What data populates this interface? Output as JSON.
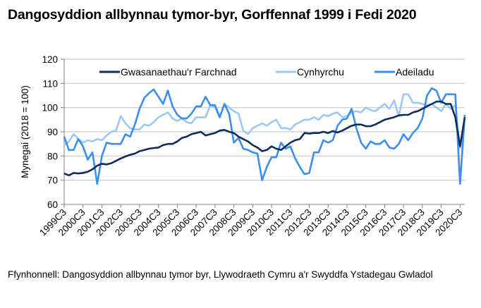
{
  "title": "Dangosyddion allbynnau tymor-byr, Gorffennaf 1999 i Fedi 2020",
  "source": "Ffynhonnell: Dangosyddion allbynnau tymor byr, Llywodraeth Cymru a'r Swyddfa Ystadegau Gwladol",
  "colors": {
    "market_services": "#0d2d5e",
    "production": "#9cc8f7",
    "construction": "#3a8ef0",
    "gridline": "#c8c8c8",
    "axis": "#808080"
  },
  "chart_data": {
    "type": "line",
    "title": "Dangosyddion allbynnau tymor-byr, Gorffennaf 1999 i Fedi 2020",
    "xlabel": "",
    "ylabel": "Mynegai (2018 = 100)",
    "ylim": [
      60,
      120
    ],
    "yticks": [
      60,
      70,
      80,
      90,
      100,
      110,
      120
    ],
    "grid": true,
    "legend_position": "top-inside",
    "x_tick_labels": [
      "1999C3",
      "2000C3",
      "2001C3",
      "2002C3",
      "2003C3",
      "2004C3",
      "2005C3",
      "2006C3",
      "2007C3",
      "2008C3",
      "2009C3",
      "2010C3",
      "2011C3",
      "2012C3",
      "2013C3",
      "2014C3",
      "2015C3",
      "2016C3",
      "2017C3",
      "2018C3",
      "2019C3",
      "2020C3"
    ],
    "x_start": "1999C3",
    "x_end": "2020C3",
    "x_frequency": "quarterly",
    "series": [
      {
        "name": "Gwasanaethau'r Farchnad",
        "color": "#0d2d5e",
        "values": [
          72.8,
          72.0,
          73.0,
          72.8,
          73.0,
          73.5,
          74.5,
          76.0,
          76.8,
          76.5,
          77.0,
          78.0,
          79.0,
          79.8,
          80.5,
          81.0,
          82.0,
          82.5,
          83.0,
          83.3,
          83.5,
          84.5,
          85.0,
          85.0,
          86.0,
          87.5,
          88.0,
          89.0,
          89.5,
          90.0,
          88.5,
          89.0,
          89.5,
          90.5,
          90.8,
          90.0,
          89.5,
          88.0,
          87.0,
          86.0,
          84.5,
          83.5,
          82.0,
          82.5,
          84.0,
          83.0,
          82.5,
          84.0,
          85.5,
          86.5,
          87.0,
          89.5,
          89.3,
          89.5,
          89.5,
          90.0,
          89.5,
          90.3,
          89.7,
          90.5,
          91.5,
          92.5,
          93.0,
          93.0,
          92.3,
          92.3,
          93.0,
          94.0,
          95.0,
          95.5,
          96.0,
          96.8,
          97.0,
          97.0,
          98.0,
          98.5,
          99.5,
          100.5,
          101.5,
          102.5,
          102.5,
          101.5,
          101.5,
          96.0,
          84.0,
          96.0
        ]
      },
      {
        "name": "Cynhyrchu",
        "color": "#9cc8f7",
        "values": [
          84.5,
          86.0,
          89.0,
          87.0,
          85.5,
          86.5,
          86.0,
          87.0,
          86.5,
          88.5,
          90.0,
          90.5,
          96.5,
          93.5,
          91.5,
          91.0,
          91.0,
          93.0,
          92.5,
          94.0,
          96.0,
          97.0,
          98.0,
          95.5,
          94.5,
          95.5,
          94.0,
          93.5,
          96.0,
          96.0,
          96.0,
          101.0,
          100.0,
          96.0,
          101.5,
          100.0,
          98.5,
          97.5,
          90.5,
          89.0,
          91.5,
          92.5,
          93.5,
          92.5,
          94.0,
          95.0,
          91.5,
          91.5,
          91.0,
          93.0,
          94.0,
          95.0,
          95.0,
          96.0,
          95.0,
          97.0,
          96.5,
          97.5,
          98.0,
          96.0,
          96.5,
          98.0,
          98.5,
          98.0,
          100.0,
          99.0,
          98.5,
          100.0,
          101.5,
          99.5,
          103.0,
          96.5,
          105.5,
          105.5,
          102.0,
          102.0,
          101.5,
          101.0,
          101.5,
          100.0,
          98.5,
          101.5,
          99.5,
          101.0,
          83.0,
          96.0
        ]
      },
      {
        "name": "Adeiladu",
        "color": "#3a8ef0",
        "values": [
          88.0,
          82.5,
          82.5,
          87.0,
          84.0,
          78.5,
          81.5,
          68.5,
          80.0,
          85.5,
          85.0,
          85.0,
          85.0,
          89.0,
          88.0,
          93.0,
          99.5,
          104.0,
          106.0,
          107.5,
          104.5,
          101.5,
          107.0,
          100.5,
          97.0,
          95.5,
          95.5,
          97.5,
          100.5,
          100.5,
          104.5,
          101.0,
          101.0,
          96.0,
          101.5,
          97.5,
          85.5,
          87.5,
          83.0,
          82.5,
          81.5,
          81.0,
          70.0,
          75.5,
          79.5,
          79.5,
          85.5,
          83.0,
          84.0,
          79.0,
          75.5,
          72.5,
          73.0,
          81.5,
          81.5,
          86.5,
          85.5,
          86.5,
          92.5,
          95.0,
          95.5,
          99.5,
          91.5,
          85.5,
          83.0,
          86.0,
          85.0,
          85.0,
          86.5,
          83.5,
          83.0,
          85.0,
          89.0,
          86.5,
          89.5,
          91.5,
          95.5,
          105.0,
          108.0,
          107.0,
          102.0,
          105.5,
          105.5,
          105.5,
          68.5,
          97.0
        ]
      }
    ]
  },
  "legend": {
    "items": [
      {
        "label": "Gwasanaethau'r Farchnad"
      },
      {
        "label": "Cynhyrchu"
      },
      {
        "label": "Adeiladu"
      }
    ]
  },
  "y_axis": {
    "label": "Mynegai (2018 = 100)",
    "ticks": [
      "60",
      "70",
      "80",
      "90",
      "100",
      "110",
      "120"
    ]
  }
}
